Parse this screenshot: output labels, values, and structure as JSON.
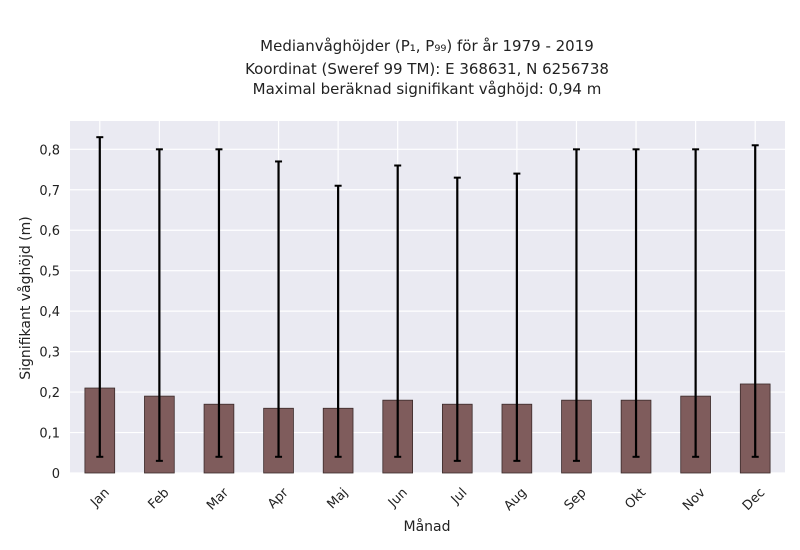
{
  "chart_data": {
    "type": "bar",
    "title_lines": [
      "Medianvåghöjder (P₁, P₉₉) för år 1979 - 2019",
      "Koordinat (Sweref 99 TM): E 368631, N 6256738",
      "Maximal beräknad signifikant våghöjd: 0,94 m"
    ],
    "xlabel": "Månad",
    "ylabel": "Signifikant våghöjd (m)",
    "categories": [
      "Jan",
      "Feb",
      "Mar",
      "Apr",
      "Maj",
      "Jun",
      "Jul",
      "Aug",
      "Sep",
      "Okt",
      "Nov",
      "Dec"
    ],
    "values": [
      0.21,
      0.19,
      0.17,
      0.16,
      0.16,
      0.18,
      0.17,
      0.17,
      0.18,
      0.18,
      0.19,
      0.22
    ],
    "error_low": [
      0.04,
      0.03,
      0.04,
      0.04,
      0.04,
      0.04,
      0.03,
      0.03,
      0.03,
      0.04,
      0.04,
      0.04
    ],
    "error_high": [
      0.83,
      0.8,
      0.8,
      0.77,
      0.71,
      0.76,
      0.73,
      0.74,
      0.8,
      0.8,
      0.8,
      0.81
    ],
    "yticks": [
      0,
      0.1,
      0.2,
      0.3,
      0.4,
      0.5,
      0.6,
      0.7,
      0.8
    ],
    "ytick_labels": [
      "0",
      "0,1",
      "0,2",
      "0,3",
      "0,4",
      "0,5",
      "0,6",
      "0,7",
      "0,8"
    ],
    "ylim": [
      0,
      0.87
    ],
    "grid": true,
    "colors": {
      "bar_fill": "#7f5c5c",
      "bar_edge": "#3a2a2a",
      "error_bar": "#000000",
      "plot_background": "#eaeaf2",
      "grid": "#ffffff"
    }
  }
}
